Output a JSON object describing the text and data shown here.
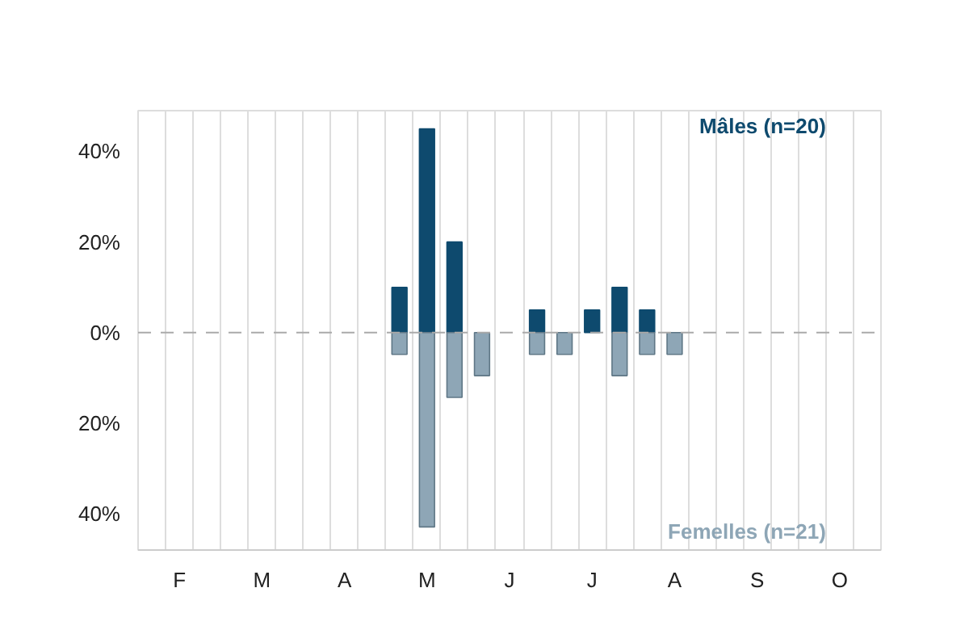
{
  "chart_data": {
    "type": "bar",
    "categories": [
      null,
      "F",
      null,
      null,
      "M",
      null,
      null,
      "A",
      null,
      null,
      "M",
      null,
      null,
      "J",
      null,
      null,
      "J",
      null,
      null,
      "A",
      null,
      null,
      "S",
      null,
      null,
      "O",
      null
    ],
    "series": [
      {
        "name": "Mâles (n=20)",
        "color": "#0e4a6e",
        "values": [
          null,
          null,
          null,
          null,
          null,
          null,
          null,
          null,
          null,
          10,
          45,
          20,
          null,
          null,
          5,
          null,
          5,
          10,
          5,
          null,
          null,
          null,
          null,
          null,
          null,
          null,
          null
        ]
      },
      {
        "name": "Femelles (n=21)",
        "color": "#8ea6b6",
        "values": [
          null,
          null,
          null,
          null,
          null,
          null,
          null,
          null,
          null,
          -4.8,
          -42.9,
          -14.3,
          -9.5,
          null,
          -4.8,
          -4.8,
          null,
          -9.5,
          -4.8,
          -4.8,
          null,
          null,
          null,
          null,
          null,
          null,
          null
        ]
      }
    ],
    "ylim": [
      -48,
      49
    ],
    "yticks": [
      {
        "value": -40,
        "label": "40%"
      },
      {
        "value": -20,
        "label": "20%"
      },
      {
        "value": 0,
        "label": "0%"
      },
      {
        "value": 20,
        "label": "20%"
      },
      {
        "value": 40,
        "label": "40%"
      }
    ],
    "ref_lines": [
      {
        "axis": "y",
        "value": 0,
        "label": null,
        "color": "#aaaaaa",
        "line_style": "dashed"
      }
    ],
    "grid": "x"
  }
}
